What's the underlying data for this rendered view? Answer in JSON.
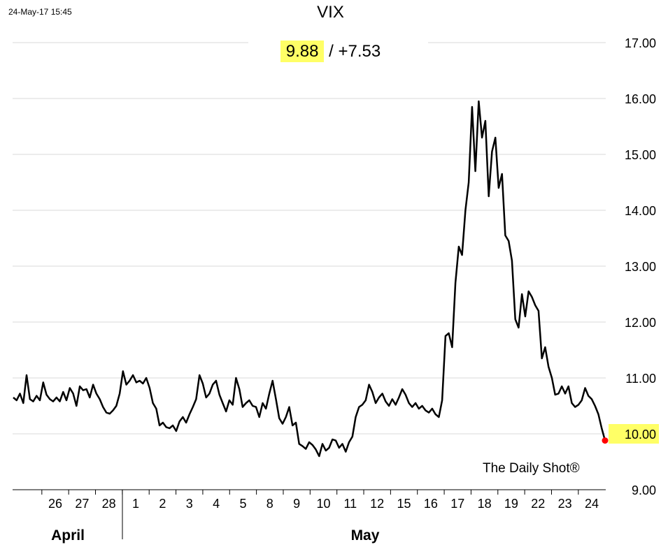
{
  "timestamp": "24-May-17 15:45",
  "header": {
    "last_value": "9.88",
    "separator": "/",
    "change": "+7.53"
  },
  "watermark": "The Daily Shot®",
  "chart_data": {
    "type": "line",
    "title": "VIX",
    "xlabel": "",
    "ylabel": "",
    "ylim": [
      9,
      17
    ],
    "y_ticks": [
      "9.00",
      "10.00",
      "11.00",
      "12.00",
      "13.00",
      "14.00",
      "15.00",
      "16.00",
      "17.00"
    ],
    "highlight_ytick": "10.00",
    "x_ticks": [
      "26",
      "27",
      "28",
      "1",
      "2",
      "3",
      "4",
      "5",
      "8",
      "9",
      "10",
      "11",
      "12",
      "15",
      "16",
      "17",
      "18",
      "19",
      "22",
      "23",
      "24"
    ],
    "month_labels": [
      "April",
      "May"
    ],
    "grid": true,
    "colors": {
      "line": "#000000",
      "last_point": "#ff0000",
      "highlight": "#ffff66",
      "grid": "#d9d9d9"
    },
    "series": [
      {
        "values": [
          10.65,
          10.6,
          10.72,
          10.55,
          11.05,
          10.62,
          10.58,
          10.68,
          10.6,
          10.92,
          10.7,
          10.62,
          10.58,
          10.65,
          10.58,
          10.75,
          10.6,
          10.82,
          10.72,
          10.5,
          10.85,
          10.78,
          10.8,
          10.65,
          10.88,
          10.72,
          10.62,
          10.48,
          10.38,
          10.36,
          10.42,
          10.5,
          10.72,
          11.12,
          10.88,
          10.95,
          11.05,
          10.92,
          10.95,
          10.9,
          11.0,
          10.82,
          10.55,
          10.45,
          10.15,
          10.2,
          10.12,
          10.1,
          10.15,
          10.05,
          10.22,
          10.3,
          10.2,
          10.35,
          10.48,
          10.62,
          11.05,
          10.9,
          10.65,
          10.72,
          10.88,
          10.95,
          10.7,
          10.55,
          10.4,
          10.6,
          10.52,
          11.0,
          10.8,
          10.48,
          10.55,
          10.6,
          10.5,
          10.48,
          10.3,
          10.55,
          10.45,
          10.72,
          10.95,
          10.62,
          10.28,
          10.18,
          10.3,
          10.48,
          10.15,
          10.2,
          9.82,
          9.78,
          9.73,
          9.85,
          9.8,
          9.72,
          9.6,
          9.82,
          9.7,
          9.75,
          9.9,
          9.88,
          9.75,
          9.82,
          9.68,
          9.85,
          9.95,
          10.3,
          10.48,
          10.52,
          10.6,
          10.88,
          10.75,
          10.55,
          10.65,
          10.72,
          10.58,
          10.5,
          10.62,
          10.52,
          10.65,
          10.8,
          10.7,
          10.55,
          10.48,
          10.55,
          10.45,
          10.5,
          10.42,
          10.38,
          10.45,
          10.35,
          10.3,
          10.6,
          11.75,
          11.8,
          11.55,
          12.7,
          13.35,
          13.2,
          14.0,
          14.5,
          15.85,
          14.7,
          15.95,
          15.3,
          15.6,
          14.25,
          15.05,
          15.3,
          14.4,
          14.65,
          13.55,
          13.45,
          13.1,
          12.05,
          11.9,
          12.5,
          12.1,
          12.55,
          12.45,
          12.3,
          12.2,
          11.35,
          11.55,
          11.2,
          11.0,
          10.7,
          10.72,
          10.85,
          10.72,
          10.85,
          10.55,
          10.48,
          10.52,
          10.6,
          10.82,
          10.68,
          10.62,
          10.5,
          10.35,
          10.1,
          9.88
        ]
      }
    ]
  }
}
